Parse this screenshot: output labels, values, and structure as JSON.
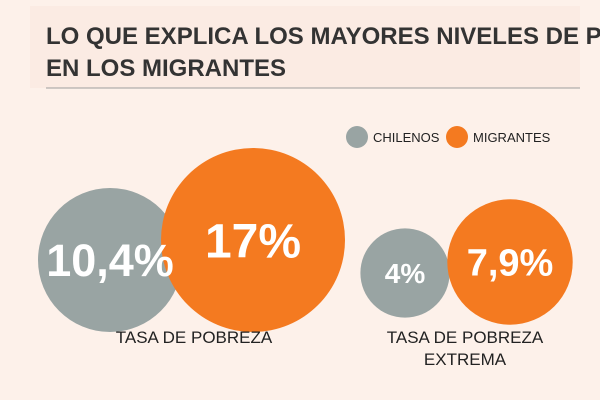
{
  "colors": {
    "background": "#fdf1ea",
    "chilenos": "#99a4a3",
    "migrantes": "#f47a20",
    "title": "#333333",
    "text": "#222222",
    "rule": "#9e9e9e",
    "value_text": "#ffffff"
  },
  "chart_data": {
    "type": "bubble",
    "title": "LO QUE EXPLICA LOS MAYORES NIVELES DE POBREZA EN LOS MIGRANTES",
    "title_lines": [
      "LO QUE EXPLICA LOS MAYORES NIVELES DE POBREZA",
      "EN LOS MIGRANTES"
    ],
    "legend_position": "top-right",
    "series": [
      {
        "name": "CHILENOS",
        "color": "#99a4a3"
      },
      {
        "name": "MIGRANTES",
        "color": "#f47a20"
      }
    ],
    "groups": [
      {
        "label_lines": [
          "TASA DE POBREZA"
        ],
        "values": [
          10.4,
          17
        ],
        "value_labels": [
          "10,4%",
          "17%"
        ]
      },
      {
        "label_lines": [
          "TASA DE POBREZA",
          "EXTREMA"
        ],
        "values": [
          4,
          7.9
        ],
        "value_labels": [
          "4%",
          "7,9%"
        ]
      }
    ]
  }
}
